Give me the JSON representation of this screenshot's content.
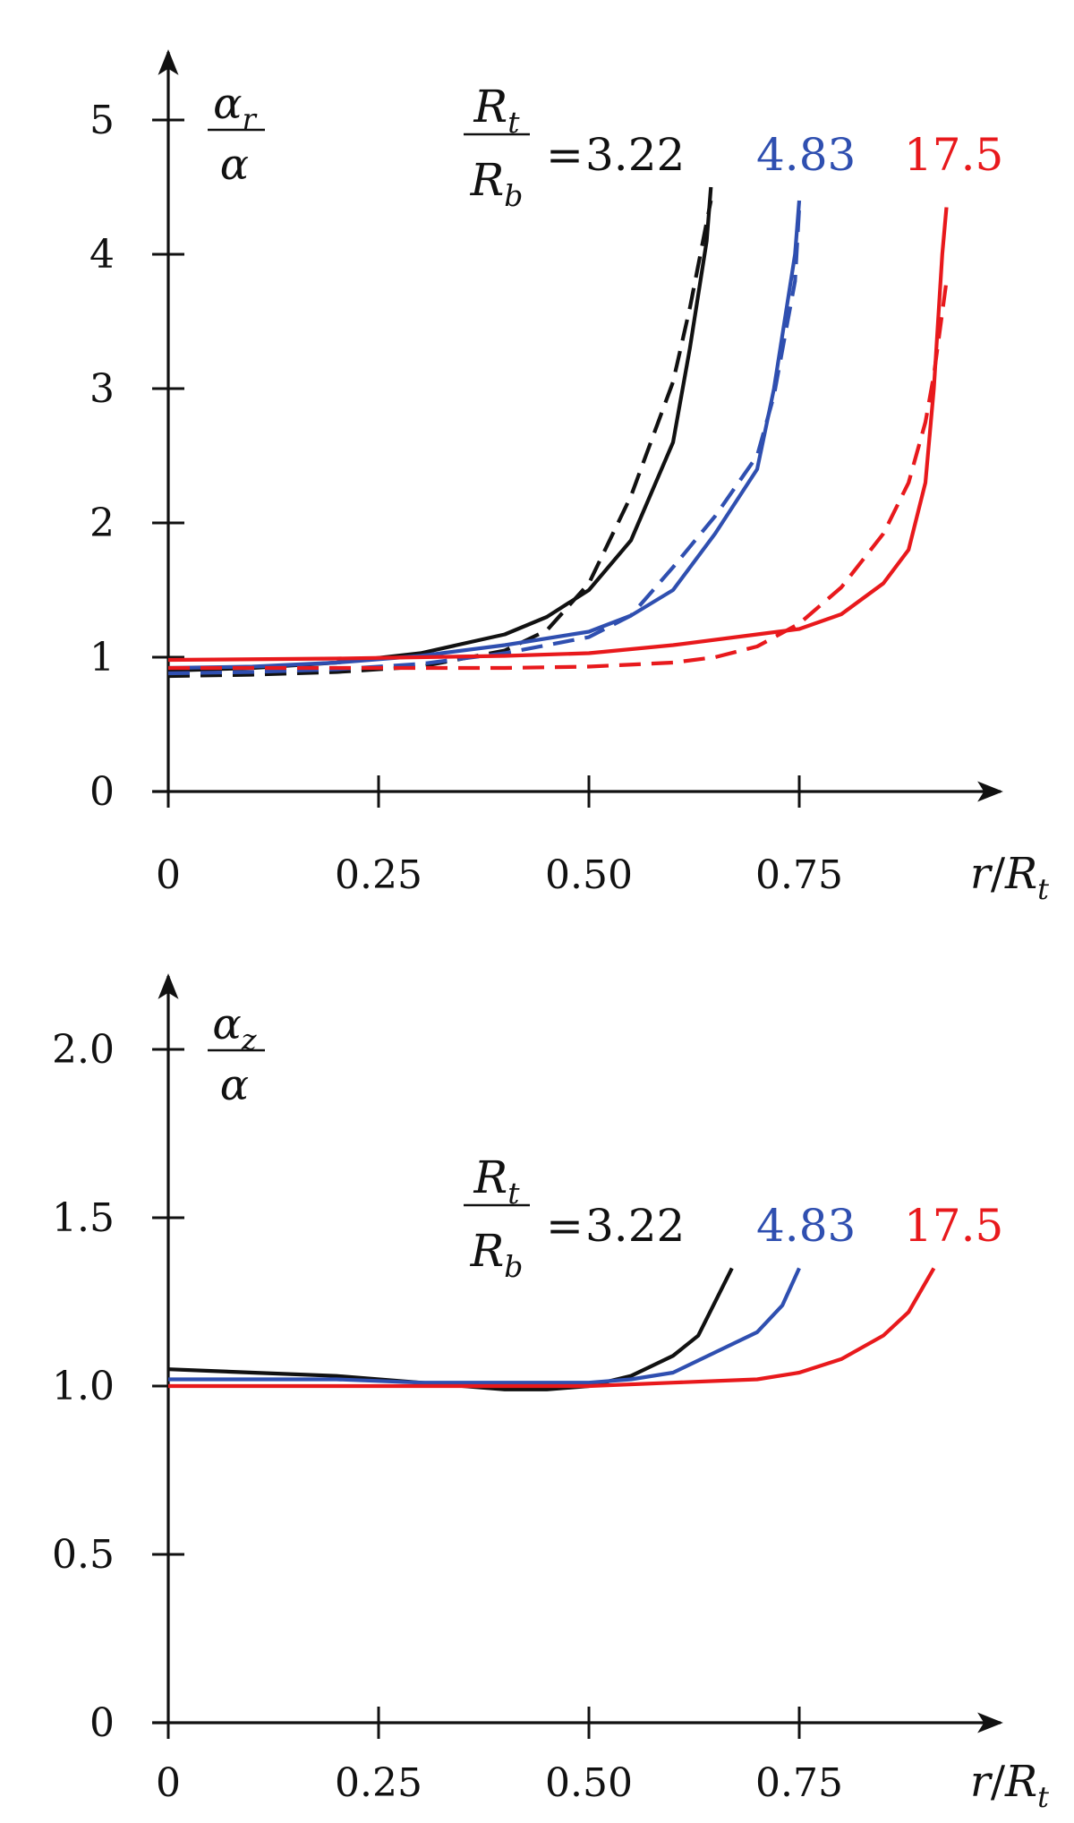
{
  "chart_data": [
    {
      "type": "line",
      "ylabel_num": "α",
      "ylabel_num_sub": "r",
      "ylabel_den": "α",
      "xlabel_num": "r",
      "xlabel_den": "R",
      "xlabel_den_sub": "t",
      "xlim": [
        0,
        1.0
      ],
      "ylim": [
        0,
        5.4
      ],
      "x_ticks": [
        0,
        0.25,
        0.5,
        0.75
      ],
      "x_tick_labels": [
        "0",
        "0.25",
        "0.50",
        "0.75"
      ],
      "y_ticks": [
        0,
        1,
        2,
        3,
        4,
        5
      ],
      "y_tick_labels": [
        "0",
        "1",
        "2",
        "3",
        "4",
        "5"
      ],
      "legend": {
        "ratio_num": "R",
        "ratio_num_sub": "t",
        "ratio_den": "R",
        "ratio_den_sub": "b",
        "equals": "=",
        "values": [
          "3.22",
          "4.83",
          "17.5"
        ]
      },
      "series": [
        {
          "label_ref": "3.22",
          "style": "solid",
          "color": "#111111",
          "x": [
            0,
            0.1,
            0.2,
            0.3,
            0.4,
            0.45,
            0.5,
            0.55,
            0.6,
            0.62,
            0.64,
            0.645
          ],
          "y": [
            0.9,
            0.92,
            0.96,
            1.03,
            1.17,
            1.3,
            1.5,
            1.87,
            2.6,
            3.3,
            4.1,
            4.5
          ]
        },
        {
          "label_ref": "3.22",
          "style": "dashed",
          "color": "#111111",
          "x": [
            0,
            0.1,
            0.2,
            0.3,
            0.4,
            0.45,
            0.5,
            0.55,
            0.6,
            0.62,
            0.645
          ],
          "y": [
            0.86,
            0.87,
            0.89,
            0.93,
            1.05,
            1.2,
            1.55,
            2.2,
            3.05,
            3.6,
            4.4
          ]
        },
        {
          "label_ref": "4.83",
          "style": "solid",
          "color": "#2f4fb0",
          "x": [
            0,
            0.1,
            0.2,
            0.3,
            0.4,
            0.5,
            0.55,
            0.6,
            0.65,
            0.7,
            0.72,
            0.745,
            0.75
          ],
          "y": [
            0.92,
            0.93,
            0.96,
            1.01,
            1.09,
            1.19,
            1.31,
            1.5,
            1.92,
            2.4,
            3.0,
            4.0,
            4.4
          ]
        },
        {
          "label_ref": "4.83",
          "style": "dashed",
          "color": "#2f4fb0",
          "x": [
            0,
            0.1,
            0.2,
            0.3,
            0.4,
            0.5,
            0.55,
            0.6,
            0.65,
            0.7,
            0.72,
            0.745,
            0.75
          ],
          "y": [
            0.88,
            0.89,
            0.91,
            0.95,
            1.03,
            1.15,
            1.31,
            1.67,
            2.05,
            2.5,
            2.95,
            3.8,
            4.35
          ]
        },
        {
          "label_ref": "17.5",
          "style": "solid",
          "color": "#e8191c",
          "x": [
            0,
            0.2,
            0.4,
            0.5,
            0.6,
            0.7,
            0.75,
            0.8,
            0.85,
            0.88,
            0.9,
            0.91,
            0.92,
            0.925
          ],
          "y": [
            0.98,
            0.99,
            1.01,
            1.03,
            1.09,
            1.17,
            1.21,
            1.32,
            1.55,
            1.8,
            2.3,
            3.0,
            4.0,
            4.35
          ]
        },
        {
          "label_ref": "17.5",
          "style": "dashed",
          "color": "#e8191c",
          "x": [
            0,
            0.2,
            0.4,
            0.5,
            0.6,
            0.65,
            0.7,
            0.75,
            0.8,
            0.85,
            0.88,
            0.9,
            0.91,
            0.925
          ],
          "y": [
            0.92,
            0.92,
            0.92,
            0.93,
            0.96,
            1.0,
            1.08,
            1.25,
            1.52,
            1.92,
            2.3,
            2.75,
            3.1,
            3.8
          ]
        }
      ]
    },
    {
      "type": "line",
      "ylabel_num": "α",
      "ylabel_num_sub": "z",
      "ylabel_den": "α",
      "xlabel_num": "r",
      "xlabel_den": "R",
      "xlabel_den_sub": "t",
      "xlim": [
        0,
        1.0
      ],
      "ylim": [
        0,
        2.2
      ],
      "x_ticks": [
        0,
        0.25,
        0.5,
        0.75
      ],
      "x_tick_labels": [
        "0",
        "0.25",
        "0.50",
        "0.75"
      ],
      "y_ticks": [
        0,
        0.5,
        1.0,
        1.5,
        2.0
      ],
      "y_tick_labels": [
        "0",
        "0.5",
        "1.0",
        "1.5",
        "2.0"
      ],
      "legend": {
        "ratio_num": "R",
        "ratio_num_sub": "t",
        "ratio_den": "R",
        "ratio_den_sub": "b",
        "equals": "=",
        "values": [
          "3.22",
          "4.83",
          "17.5"
        ]
      },
      "series": [
        {
          "label_ref": "3.22",
          "style": "solid",
          "color": "#111111",
          "x": [
            0,
            0.1,
            0.2,
            0.3,
            0.4,
            0.45,
            0.5,
            0.55,
            0.6,
            0.63,
            0.67
          ],
          "y": [
            1.05,
            1.04,
            1.03,
            1.01,
            0.99,
            0.99,
            1.0,
            1.03,
            1.09,
            1.15,
            1.35
          ]
        },
        {
          "label_ref": "4.83",
          "style": "solid",
          "color": "#2f4fb0",
          "x": [
            0,
            0.1,
            0.2,
            0.3,
            0.4,
            0.5,
            0.55,
            0.6,
            0.65,
            0.7,
            0.73,
            0.75
          ],
          "y": [
            1.02,
            1.02,
            1.02,
            1.01,
            1.01,
            1.01,
            1.02,
            1.04,
            1.1,
            1.16,
            1.24,
            1.35
          ]
        },
        {
          "label_ref": "17.5",
          "style": "solid",
          "color": "#e8191c",
          "x": [
            0,
            0.2,
            0.4,
            0.5,
            0.6,
            0.7,
            0.75,
            0.8,
            0.85,
            0.88,
            0.91
          ],
          "y": [
            1.0,
            1.0,
            1.0,
            1.0,
            1.01,
            1.02,
            1.04,
            1.08,
            1.15,
            1.22,
            1.35
          ]
        }
      ]
    }
  ]
}
